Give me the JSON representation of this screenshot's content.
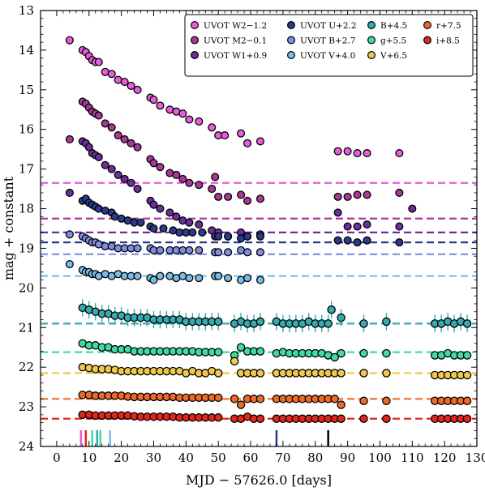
{
  "chart_data": {
    "type": "scatter",
    "xlabel": "MJD − 57626.0 [days]",
    "ylabel": "mag + constant",
    "xlim": [
      -5,
      130
    ],
    "ylim": [
      24,
      13
    ],
    "y_inverted": true,
    "xticks": [
      0,
      10,
      20,
      30,
      40,
      50,
      60,
      70,
      80,
      90,
      100,
      110,
      120,
      130
    ],
    "yticks": [
      13,
      14,
      15,
      16,
      17,
      18,
      19,
      20,
      21,
      22,
      23,
      24
    ],
    "grid": false,
    "legend_position": "top-right",
    "series": [
      {
        "name": "UVOT W2−1.2",
        "color": "#e85ddc",
        "baseline": 17.35,
        "x": [
          4,
          8,
          9,
          10,
          11,
          12,
          13,
          15,
          17,
          19,
          21,
          23,
          25,
          29,
          30,
          32,
          35,
          37,
          39,
          41,
          44,
          48,
          50,
          52,
          57,
          59,
          63,
          87,
          90,
          93,
          96,
          106
        ],
        "y": [
          13.75,
          14.0,
          14.05,
          14.15,
          14.25,
          14.3,
          14.3,
          14.55,
          14.6,
          14.75,
          14.8,
          14.9,
          15.0,
          15.2,
          15.25,
          15.4,
          15.5,
          15.55,
          15.6,
          15.75,
          15.8,
          15.95,
          16.15,
          16.15,
          16.1,
          16.35,
          16.3,
          16.55,
          16.55,
          16.6,
          16.6,
          16.6
        ]
      },
      {
        "name": "UVOT M2−0.1",
        "color": "#a8389a",
        "baseline": 18.25,
        "x": [
          4,
          8,
          9,
          10,
          11,
          12,
          13,
          15,
          17,
          19,
          21,
          23,
          25,
          29,
          30,
          32,
          35,
          37,
          39,
          41,
          44,
          48,
          49,
          50,
          53,
          57,
          59,
          63,
          87,
          90,
          93,
          96,
          106
        ],
        "y": [
          16.25,
          15.3,
          15.35,
          15.45,
          15.55,
          15.6,
          15.65,
          15.85,
          15.95,
          16.15,
          16.25,
          16.35,
          16.45,
          16.75,
          16.85,
          16.95,
          17.1,
          17.15,
          17.25,
          17.35,
          17.4,
          17.5,
          17.2,
          17.7,
          17.7,
          17.65,
          17.8,
          17.75,
          17.7,
          17.7,
          17.65,
          17.65,
          17.6
        ]
      },
      {
        "name": "UVOT W1+0.9",
        "color": "#6a2f9c",
        "baseline": 18.6,
        "x": [
          4,
          8,
          9,
          10,
          11,
          12,
          13,
          15,
          17,
          19,
          21,
          23,
          25,
          29,
          30,
          32,
          35,
          37,
          39,
          41,
          44,
          48,
          50,
          53,
          57,
          59,
          63,
          87,
          90,
          93,
          96,
          106,
          110
        ],
        "y": [
          17.6,
          16.3,
          16.35,
          16.45,
          16.6,
          16.65,
          16.7,
          16.9,
          17.0,
          17.15,
          17.25,
          17.35,
          17.5,
          17.8,
          17.9,
          18.0,
          18.1,
          18.2,
          18.3,
          18.35,
          18.4,
          18.55,
          18.6,
          18.7,
          18.6,
          18.7,
          18.65,
          18.1,
          18.45,
          18.45,
          18.4,
          18.45,
          18.0
        ]
      },
      {
        "name": "UVOT U+2.2",
        "color": "#2b3a8a",
        "baseline": 18.85,
        "x": [
          8,
          9,
          10,
          11,
          12,
          13,
          15,
          17,
          18,
          20,
          22,
          24,
          26,
          29,
          30,
          33,
          36,
          38,
          40,
          42,
          45,
          49,
          50,
          53,
          57,
          59,
          63,
          87,
          90,
          93,
          96,
          106
        ],
        "y": [
          17.8,
          17.75,
          17.85,
          17.9,
          17.95,
          18.0,
          18.05,
          18.1,
          18.2,
          18.25,
          18.3,
          18.35,
          18.35,
          18.45,
          18.5,
          18.5,
          18.55,
          18.6,
          18.6,
          18.6,
          18.6,
          18.7,
          18.7,
          18.7,
          18.75,
          18.7,
          18.7,
          18.8,
          18.8,
          18.85,
          18.8,
          18.85
        ]
      },
      {
        "name": "UVOT B+2.7",
        "color": "#7f8ee0",
        "baseline": 19.15,
        "x": [
          4,
          8,
          9,
          10,
          11,
          12,
          13,
          15,
          17,
          19,
          21,
          23,
          25,
          29,
          30,
          32,
          35,
          37,
          39,
          41,
          44,
          49,
          50,
          53,
          57,
          59,
          63
        ],
        "y": [
          18.65,
          18.7,
          18.75,
          18.8,
          18.85,
          18.85,
          18.9,
          18.95,
          18.95,
          19.0,
          19.0,
          19.0,
          19.0,
          19.0,
          19.05,
          19.05,
          19.05,
          19.05,
          19.05,
          19.05,
          19.05,
          19.1,
          19.1,
          19.1,
          19.05,
          19.1,
          19.1
        ]
      },
      {
        "name": "UVOT V+4.0",
        "color": "#78bde8",
        "baseline": 19.7,
        "x": [
          4,
          8,
          9,
          10,
          11,
          12,
          13,
          15,
          17,
          19,
          21,
          23,
          25,
          29,
          30,
          32,
          35,
          37,
          39,
          41,
          44,
          49,
          50,
          53,
          57,
          59,
          63
        ],
        "y": [
          19.4,
          19.55,
          19.6,
          19.6,
          19.65,
          19.65,
          19.7,
          19.65,
          19.7,
          19.65,
          19.7,
          19.7,
          19.7,
          19.75,
          19.8,
          19.7,
          19.7,
          19.75,
          19.7,
          19.75,
          19.75,
          19.7,
          19.7,
          19.75,
          19.8,
          19.75,
          19.8
        ]
      },
      {
        "name": "B+4.5",
        "color": "#35aab0",
        "baseline": 20.9,
        "x": [
          8,
          10,
          12,
          14,
          16,
          18,
          20,
          22,
          24,
          26,
          28,
          30,
          32,
          34,
          36,
          38,
          40,
          42,
          44,
          46,
          48,
          50,
          55,
          57,
          59,
          61,
          63,
          68,
          70,
          72,
          74,
          76,
          78,
          80,
          82,
          84,
          85,
          88,
          95,
          102,
          117,
          119,
          121,
          123,
          125,
          127
        ],
        "y": [
          20.5,
          20.55,
          20.6,
          20.65,
          20.65,
          20.7,
          20.7,
          20.75,
          20.75,
          20.75,
          20.75,
          20.8,
          20.8,
          20.8,
          20.8,
          20.8,
          20.85,
          20.85,
          20.85,
          20.85,
          20.85,
          20.85,
          20.9,
          20.85,
          20.9,
          20.9,
          20.85,
          20.85,
          20.9,
          20.9,
          20.9,
          20.9,
          20.85,
          20.9,
          20.9,
          20.9,
          20.55,
          20.75,
          20.9,
          20.85,
          20.9,
          20.9,
          20.85,
          20.9,
          20.85,
          20.9
        ]
      },
      {
        "name": "g+5.5",
        "color": "#3fdca0",
        "baseline": 21.62,
        "x": [
          8,
          10,
          12,
          14,
          16,
          18,
          20,
          22,
          24,
          26,
          28,
          30,
          32,
          34,
          36,
          38,
          40,
          42,
          44,
          46,
          48,
          50,
          55,
          57,
          59,
          61,
          63,
          68,
          70,
          72,
          74,
          76,
          78,
          80,
          82,
          84,
          86,
          88,
          95,
          102,
          117,
          119,
          121,
          123,
          125,
          127
        ],
        "y": [
          21.4,
          21.45,
          21.45,
          21.5,
          21.5,
          21.55,
          21.55,
          21.55,
          21.6,
          21.6,
          21.6,
          21.6,
          21.6,
          21.6,
          21.6,
          21.6,
          21.6,
          21.6,
          21.62,
          21.62,
          21.62,
          21.62,
          21.7,
          21.5,
          21.6,
          21.6,
          21.6,
          21.65,
          21.62,
          21.65,
          21.65,
          21.65,
          21.65,
          21.65,
          21.65,
          21.7,
          21.75,
          21.65,
          21.65,
          21.65,
          21.7,
          21.7,
          21.65,
          21.7,
          21.7,
          21.7
        ]
      },
      {
        "name": "V+6.5",
        "color": "#f0c84a",
        "baseline": 22.15,
        "x": [
          8,
          10,
          12,
          14,
          16,
          18,
          20,
          22,
          24,
          26,
          28,
          30,
          32,
          34,
          36,
          38,
          40,
          42,
          44,
          46,
          48,
          50,
          55,
          57,
          59,
          61,
          63,
          68,
          70,
          72,
          74,
          76,
          78,
          80,
          82,
          84,
          86,
          88,
          95,
          102,
          117,
          119,
          121,
          123,
          125,
          127
        ],
        "y": [
          22.0,
          22.02,
          22.05,
          22.05,
          22.05,
          22.07,
          22.1,
          22.1,
          22.1,
          22.1,
          22.1,
          22.1,
          22.1,
          22.1,
          22.1,
          22.1,
          22.15,
          22.1,
          22.15,
          22.15,
          22.1,
          22.15,
          21.85,
          22.15,
          22.15,
          22.15,
          22.15,
          22.15,
          22.15,
          22.15,
          22.15,
          22.15,
          22.15,
          22.15,
          22.15,
          22.15,
          22.15,
          22.15,
          22.15,
          22.15,
          22.2,
          22.2,
          22.2,
          22.2,
          22.2,
          22.2
        ]
      },
      {
        "name": "r+7.5",
        "color": "#ee6a28",
        "baseline": 22.8,
        "x": [
          8,
          10,
          12,
          14,
          16,
          18,
          20,
          22,
          24,
          26,
          28,
          30,
          32,
          34,
          36,
          38,
          40,
          42,
          44,
          46,
          48,
          50,
          55,
          57,
          59,
          61,
          63,
          68,
          70,
          72,
          74,
          76,
          78,
          80,
          82,
          84,
          86,
          88,
          95,
          102,
          117,
          119,
          121,
          123,
          125,
          127
        ],
        "y": [
          22.7,
          22.7,
          22.72,
          22.72,
          22.72,
          22.72,
          22.72,
          22.74,
          22.75,
          22.75,
          22.75,
          22.75,
          22.75,
          22.75,
          22.75,
          22.77,
          22.77,
          22.77,
          22.77,
          22.77,
          22.77,
          22.77,
          22.8,
          22.95,
          22.8,
          22.8,
          22.8,
          22.8,
          22.8,
          22.8,
          22.8,
          22.8,
          22.8,
          22.8,
          22.8,
          22.8,
          22.8,
          22.95,
          22.85,
          22.85,
          22.85,
          22.85,
          22.85,
          22.85,
          22.85,
          22.85
        ]
      },
      {
        "name": "i+8.5",
        "color": "#e3261b",
        "baseline": 23.3,
        "x": [
          8,
          10,
          12,
          14,
          16,
          18,
          20,
          22,
          24,
          26,
          28,
          30,
          32,
          34,
          36,
          38,
          40,
          42,
          44,
          46,
          48,
          50,
          55,
          57,
          59,
          61,
          63,
          68,
          70,
          72,
          74,
          76,
          78,
          80,
          82,
          84,
          86,
          88,
          95,
          102,
          117,
          119,
          121,
          123,
          125,
          127
        ],
        "y": [
          23.2,
          23.2,
          23.22,
          23.22,
          23.22,
          23.22,
          23.22,
          23.22,
          23.24,
          23.25,
          23.25,
          23.25,
          23.25,
          23.25,
          23.25,
          23.27,
          23.27,
          23.27,
          23.27,
          23.27,
          23.27,
          23.27,
          23.3,
          23.3,
          23.25,
          23.3,
          23.3,
          23.3,
          23.3,
          23.3,
          23.3,
          23.3,
          23.3,
          23.3,
          23.3,
          23.3,
          23.3,
          23.3,
          23.3,
          23.3,
          23.3,
          23.3,
          23.3,
          23.3,
          23.3,
          23.3
        ]
      }
    ],
    "markers": [
      {
        "x": 7.5,
        "color": "#e85ddc"
      },
      {
        "x": 9.0,
        "color": "#e3261b"
      },
      {
        "x": 11.0,
        "color": "#3fdca0"
      },
      {
        "x": 12.5,
        "color": "#35aab0"
      },
      {
        "x": 13.5,
        "color": "#3fdca0"
      },
      {
        "x": 16.5,
        "color": "#78bde8"
      },
      {
        "x": 68.0,
        "color": "#2b3a8a"
      },
      {
        "x": 84.0,
        "color": "#000000"
      }
    ]
  }
}
